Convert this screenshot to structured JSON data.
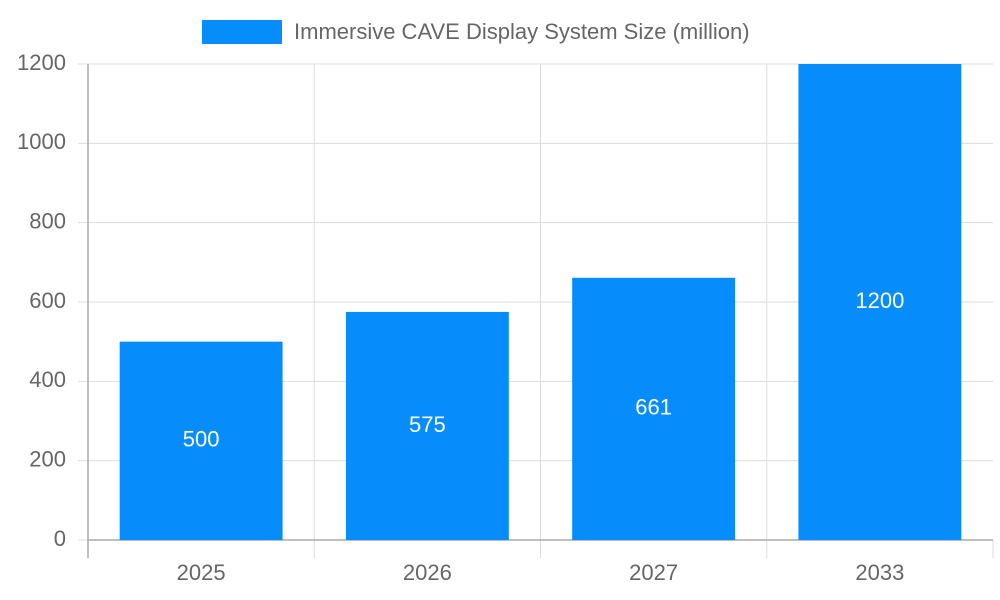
{
  "chart_data": {
    "type": "bar",
    "categories": [
      "2025",
      "2026",
      "2027",
      "2033"
    ],
    "series": [
      {
        "name": "Immersive CAVE Display System Size (million)",
        "color": "#078dfb",
        "values": [
          500,
          575,
          661,
          1200
        ]
      }
    ],
    "ylim": [
      0,
      1200
    ],
    "yticks": [
      0,
      200,
      400,
      600,
      800,
      1000,
      1200
    ],
    "grid": true,
    "legend": "top"
  }
}
